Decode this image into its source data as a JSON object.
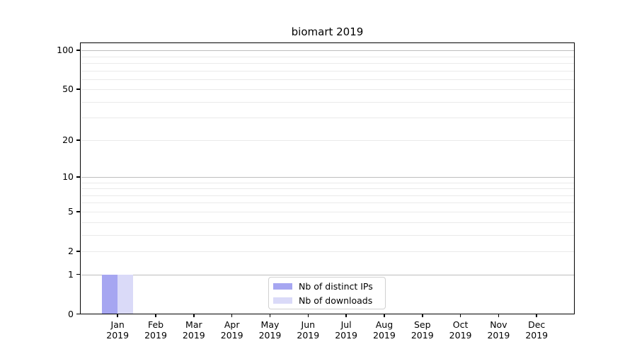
{
  "chart_data": {
    "type": "bar",
    "title": "biomart 2019",
    "categories": [
      "Jan 2019",
      "Feb 2019",
      "Mar 2019",
      "Apr 2019",
      "May 2019",
      "Jun 2019",
      "Jul 2019",
      "Aug 2019",
      "Sep 2019",
      "Oct 2019",
      "Nov 2019",
      "Dec 2019"
    ],
    "series": [
      {
        "name": "Nb of distinct IPs",
        "color": "#a6a6f1",
        "values": [
          1,
          0,
          0,
          0,
          0,
          0,
          0,
          0,
          0,
          0,
          0,
          0
        ]
      },
      {
        "name": "Nb of downloads",
        "color": "#dadaf8",
        "values": [
          1,
          0,
          0,
          0,
          0,
          0,
          0,
          0,
          0,
          0,
          0,
          0
        ]
      }
    ],
    "y_axis": {
      "scale": "log1p",
      "labeled_ticks": [
        0,
        1,
        2,
        5,
        10,
        20,
        50,
        100
      ],
      "major_gridlines": [
        1,
        10,
        100
      ],
      "minor_gridlines": [
        2,
        3,
        4,
        5,
        6,
        7,
        8,
        9,
        20,
        30,
        40,
        50,
        60,
        70,
        80,
        90
      ],
      "top_value": 115
    },
    "legend_position": "lower center",
    "grid": true,
    "colors": {
      "grid_major": "#bdbdbd",
      "grid_minor": "#eaeaea",
      "axis": "#000000",
      "background": "#ffffff"
    }
  }
}
